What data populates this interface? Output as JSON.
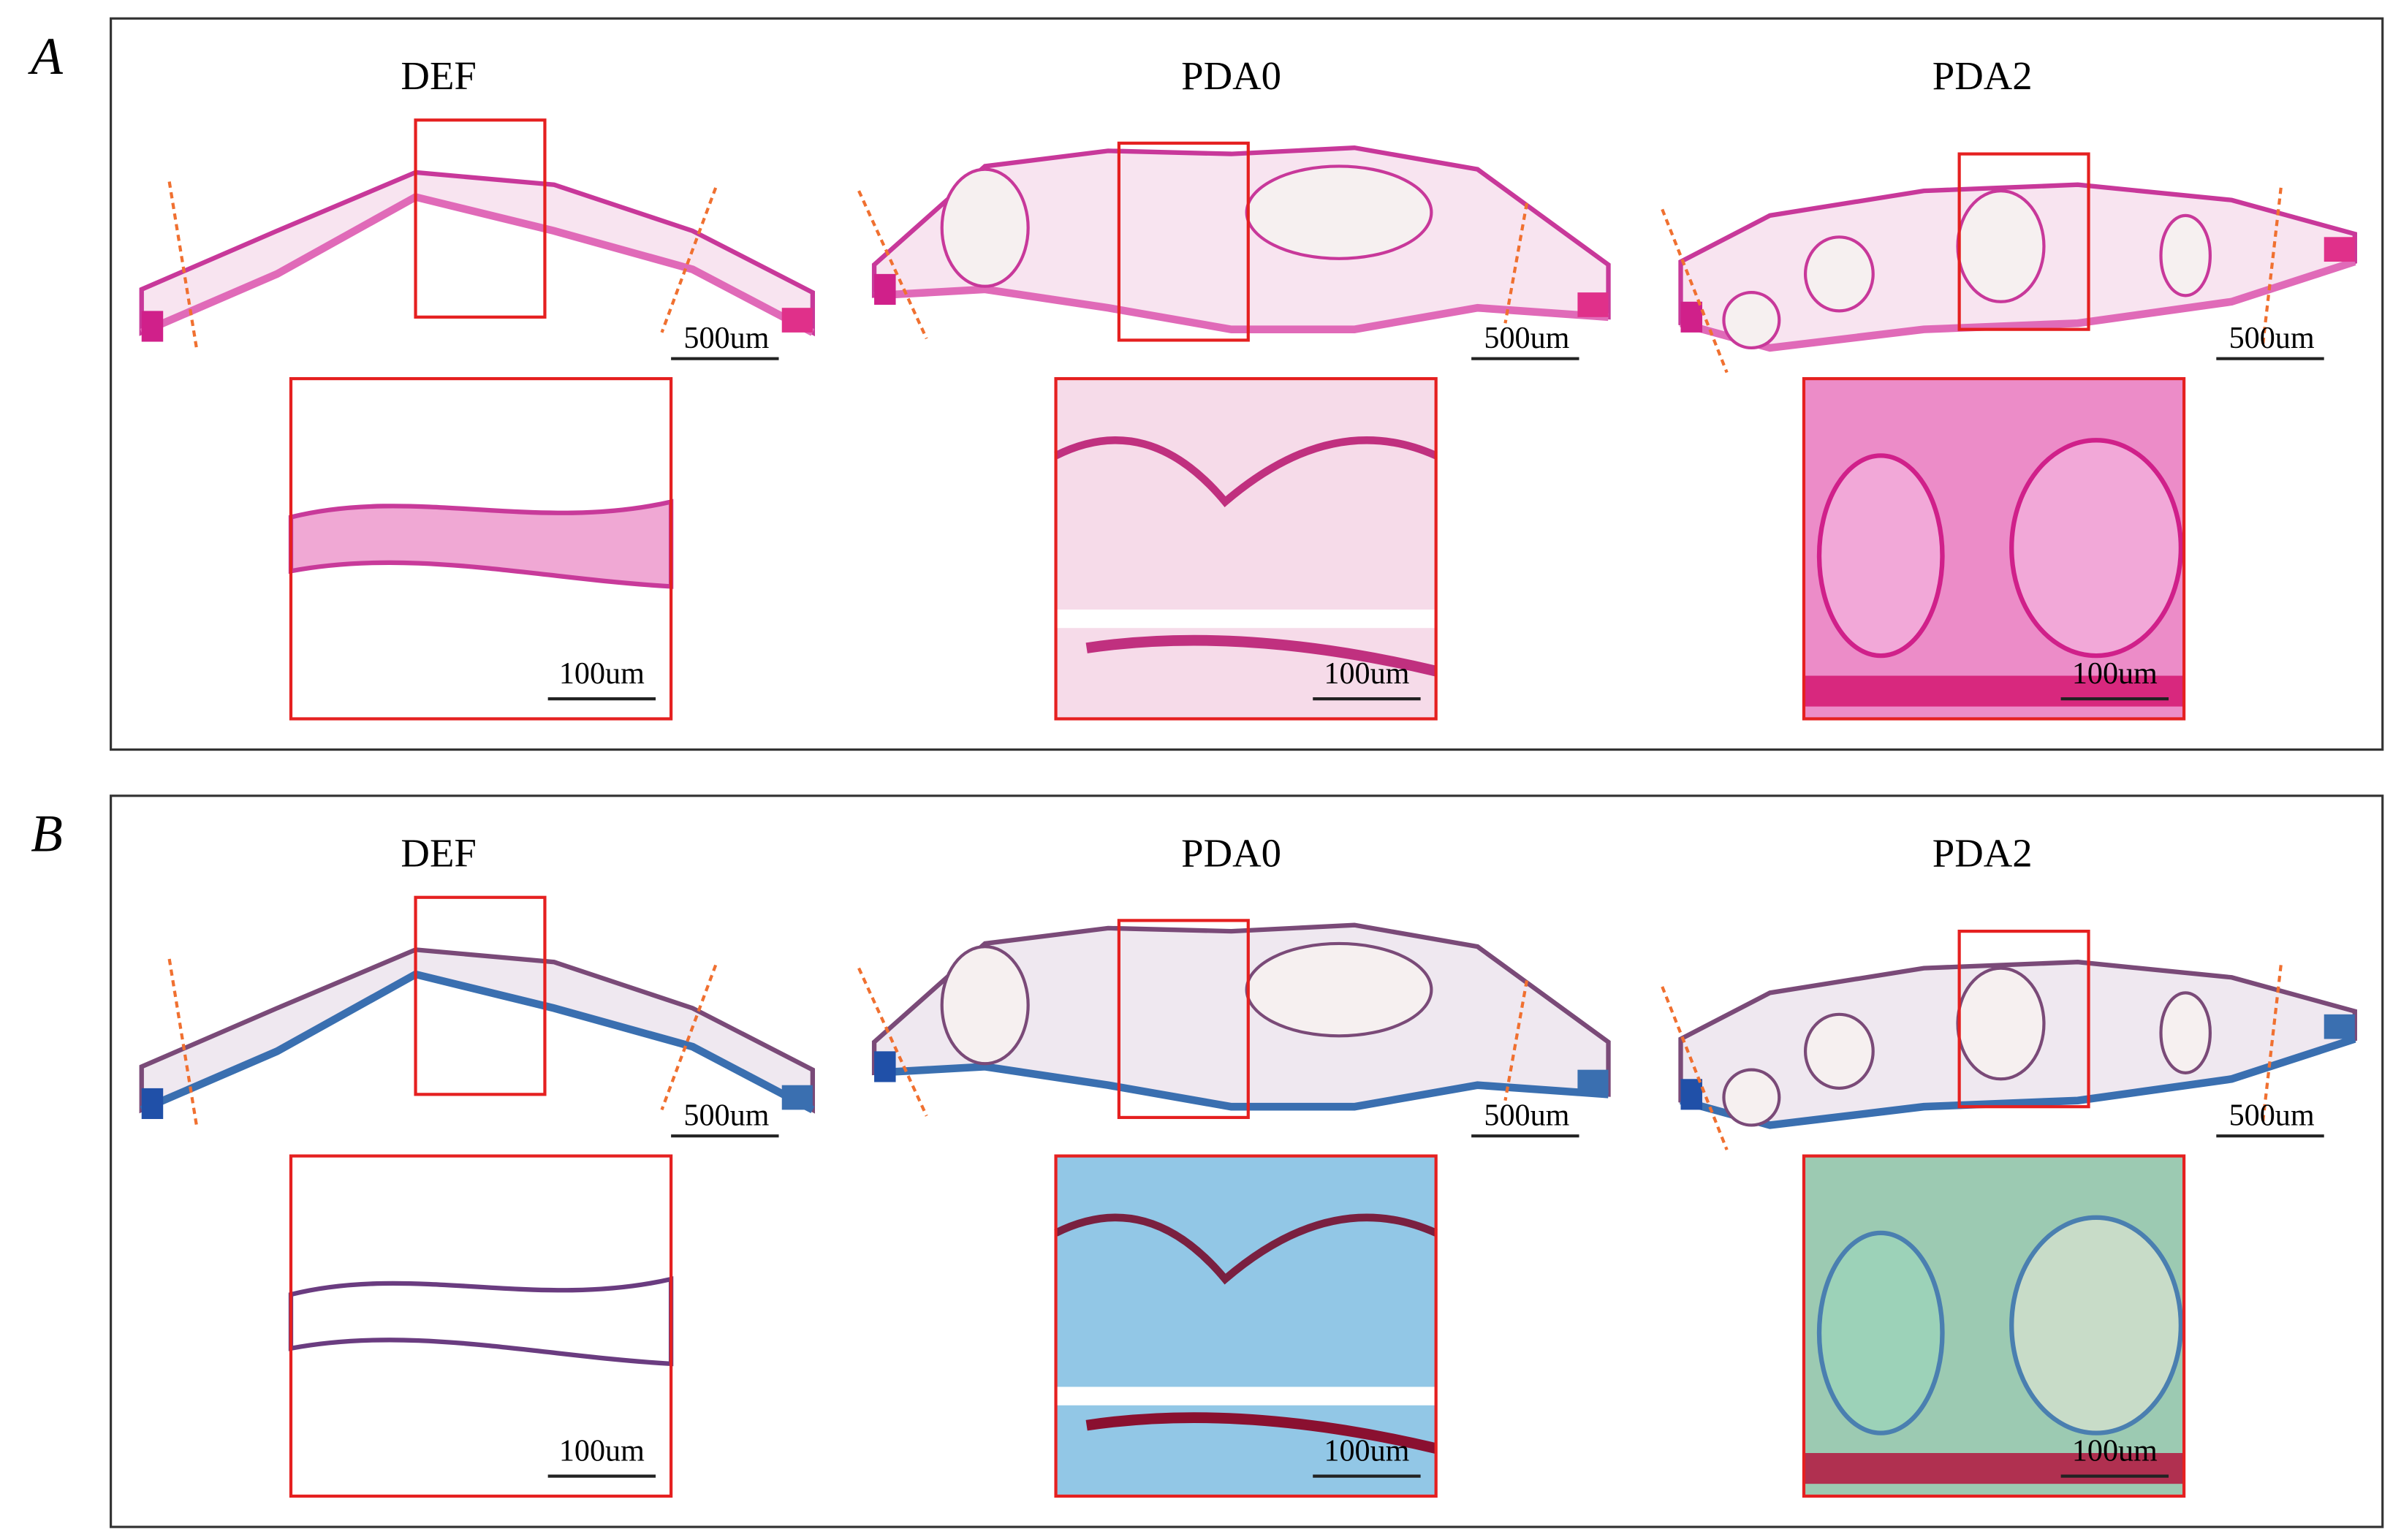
{
  "panels": [
    {
      "label": "A",
      "columns": [
        {
          "title": "DEF",
          "overview_scale": "500um",
          "zoom_scale": "100um"
        },
        {
          "title": "PDA0",
          "overview_scale": "500um",
          "zoom_scale": "100um"
        },
        {
          "title": "PDA2",
          "overview_scale": "500um",
          "zoom_scale": "100um"
        }
      ]
    },
    {
      "label": "B",
      "columns": [
        {
          "title": "DEF",
          "overview_scale": "500um",
          "zoom_scale": "100um"
        },
        {
          "title": "PDA0",
          "overview_scale": "500um",
          "zoom_scale": "100um"
        },
        {
          "title": "PDA2",
          "overview_scale": "500um",
          "zoom_scale": "100um"
        }
      ]
    }
  ]
}
